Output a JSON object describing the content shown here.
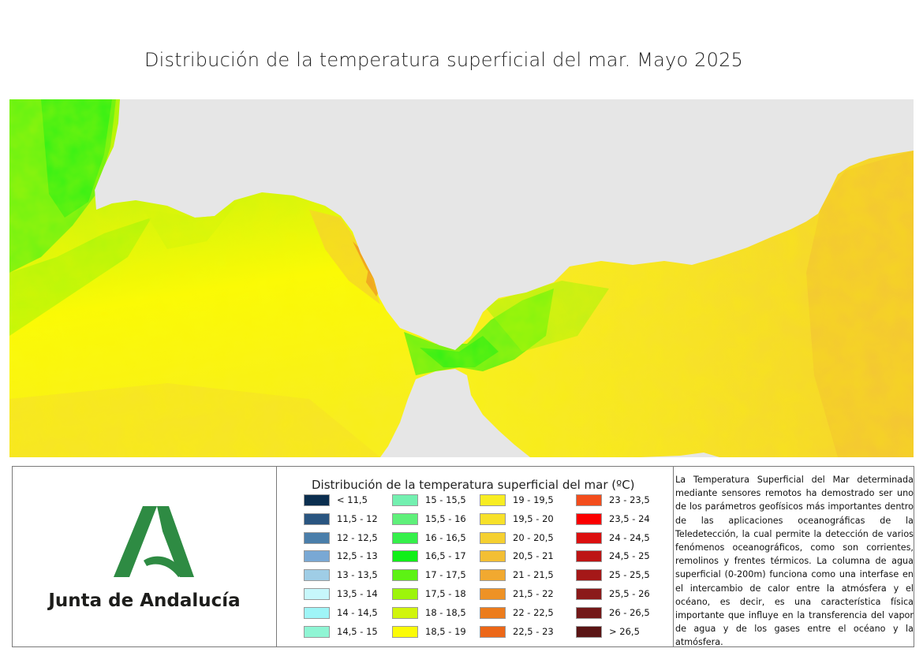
{
  "title": "Distribución de la temperatura superficial del mar. Mayo 2025",
  "map": {
    "land_color": "#e6e6e6",
    "dominant_classes": [
      "16,5 - 17",
      "17 - 17,5",
      "17,5 - 18",
      "18 - 18,5",
      "18,5 - 19",
      "19 - 19,5",
      "19,5 - 20",
      "20 - 20,5",
      "21,5 - 22"
    ]
  },
  "logo": {
    "text": "Junta de Andalucía",
    "brand_color": "#2e8b43"
  },
  "legend": {
    "title": "Distribución de la temperatura superficial del mar (ºC)",
    "columns": [
      [
        {
          "label": "< 11,5",
          "color": "#0b2e4f"
        },
        {
          "label": "11,5 - 12",
          "color": "#2a5580"
        },
        {
          "label": "12 - 12,5",
          "color": "#4a7eaa"
        },
        {
          "label": "12,5 - 13",
          "color": "#79a8d4"
        },
        {
          "label": "13 - 13,5",
          "color": "#9fcde6"
        },
        {
          "label": "13,5 - 14",
          "color": "#c7f7fb"
        },
        {
          "label": "14 - 14,5",
          "color": "#9ff5f7"
        },
        {
          "label": "14,5 - 15",
          "color": "#8ff5d4"
        }
      ],
      [
        {
          "label": "15 - 15,5",
          "color": "#73f0b0"
        },
        {
          "label": "15,5 - 16",
          "color": "#5ff07a"
        },
        {
          "label": "16 - 16,5",
          "color": "#35f04a"
        },
        {
          "label": "16,5 - 17",
          "color": "#10ef18"
        },
        {
          "label": "17 - 17,5",
          "color": "#5df214"
        },
        {
          "label": "17,5 - 18",
          "color": "#9df50a"
        },
        {
          "label": "18 - 18,5",
          "color": "#d1f50c"
        },
        {
          "label": "18,5 - 19",
          "color": "#fbfb06"
        }
      ],
      [
        {
          "label": "19 - 19,5",
          "color": "#f8ed22"
        },
        {
          "label": "19,5 - 20",
          "color": "#f7e12a"
        },
        {
          "label": "20 - 20,5",
          "color": "#f5d030"
        },
        {
          "label": "20,5 - 21",
          "color": "#f3bf34"
        },
        {
          "label": "21 - 21,5",
          "color": "#f1a930"
        },
        {
          "label": "21,5 - 22",
          "color": "#ee9225"
        },
        {
          "label": "22 - 22,5",
          "color": "#ec7c1c"
        },
        {
          "label": "22,5 - 23",
          "color": "#ec6717"
        }
      ],
      [
        {
          "label": "23 - 23,5",
          "color": "#f34d1c"
        },
        {
          "label": "23,5 - 24",
          "color": "#fb0000"
        },
        {
          "label": "24 - 24,5",
          "color": "#dc0f0f"
        },
        {
          "label": "24,5 - 25",
          "color": "#bd1515"
        },
        {
          "label": "25 - 25,5",
          "color": "#a51818"
        },
        {
          "label": "25,5 - 26",
          "color": "#8b1a1a"
        },
        {
          "label": "26 - 26,5",
          "color": "#731818"
        },
        {
          "label": "> 26,5",
          "color": "#5a1414"
        }
      ]
    ]
  },
  "description": "La Temperatura Superficial del Mar determinada mediante sensores remotos ha demostrado ser uno de los parámetros geofísicos más importantes dentro de las aplicaciones oceanográficas de la Teledetección, la cual permite la detección de varios fenómenos oceanográficos, como son corrientes, remolinos y frentes térmicos. La columna de agua superficial (0-200m) funciona como una interfase en el intercambio de calor entre la atmósfera y el océano, es decir, es una característica física importante que influye en la transferencia del vapor de agua y de los gases entre el océano y la atmósfera."
}
